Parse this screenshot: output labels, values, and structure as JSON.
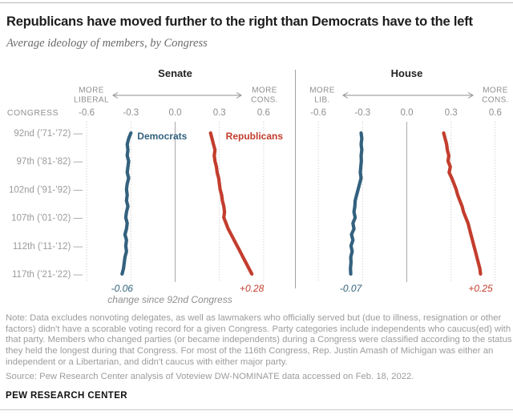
{
  "title": "Republicans have moved further to the right than Democrats have to the left",
  "subtitle": "Average ideology of members, by Congress",
  "note": "Note: Data excludes nonvoting delegates, as well as lawmakers who officially served but (due to illness, resignation or other factors) didn't have a scorable voting record for a given Congress. Party categories include independents who caucus(ed) with that party. Members who changed parties (or became independents) during a Congress were classified according to the status they held the longest during that Congress. For most of the 116th Congress, Rep. Justin Amash of Michigan was either an independent or a Libertarian, and didn't caucus with either major party.",
  "source": "Source: Pew Research Center analysis of Voteview DW-NOMINATE data accessed on Feb. 18, 2022.",
  "brand": "PEW RESEARCH CENTER",
  "colors": {
    "democrat": "#33617e",
    "republican": "#c33d2d",
    "axis_text": "#8f8f8f",
    "gridline": "#c2c2c2",
    "zero_line": "#a9a9a9",
    "divider": "#a3a3a3"
  },
  "chart_data": {
    "type": "line",
    "orientation": "vertical-time",
    "congress_axis": {
      "label": "CONGRESS",
      "first_congress": 92,
      "last_congress": 117,
      "rows": [
        {
          "congress": 92,
          "label": "92nd (’71-’72) —"
        },
        {
          "congress": 97,
          "label": "97th (’81-’82) —"
        },
        {
          "congress": 102,
          "label": "102nd (’91-’92) —"
        },
        {
          "congress": 107,
          "label": "107th (’01-’02) —"
        },
        {
          "congress": 112,
          "label": "112th (’11-’12) —"
        },
        {
          "congress": 117,
          "label": "117th (’21-’22) —"
        }
      ]
    },
    "value_axis": {
      "tick_labels": [
        "-0.6",
        "-0.3",
        "0.0",
        "0.3",
        "0.6"
      ],
      "tick_values": [
        -0.6,
        -0.3,
        0,
        0.3,
        0.6
      ],
      "range": [
        -0.72,
        0.72
      ]
    },
    "change_note": "change since 92nd Congress",
    "panels": [
      {
        "chamber": "Senate",
        "left_axis_label": [
          "MORE",
          "LIBERAL"
        ],
        "right_axis_label": [
          "MORE",
          "CONS."
        ],
        "show_series_names": true,
        "show_change_note": true,
        "series": [
          {
            "name": "Democrats",
            "color": "#33617e",
            "change_label": "-0.06",
            "start_value": -0.3,
            "end_value": -0.36,
            "values": [
              -0.3,
              -0.315,
              -0.325,
              -0.32,
              -0.325,
              -0.315,
              -0.32,
              -0.325,
              -0.315,
              -0.325,
              -0.33,
              -0.325,
              -0.33,
              -0.32,
              -0.33,
              -0.335,
              -0.325,
              -0.33,
              -0.34,
              -0.33,
              -0.335,
              -0.33,
              -0.34,
              -0.345,
              -0.35,
              -0.36
            ]
          },
          {
            "name": "Republicans",
            "color": "#c33d2d",
            "change_label": "+0.28",
            "start_value": 0.24,
            "end_value": 0.52,
            "values": [
              0.24,
              0.25,
              0.26,
              0.27,
              0.265,
              0.27,
              0.28,
              0.285,
              0.295,
              0.3,
              0.305,
              0.315,
              0.32,
              0.33,
              0.335,
              0.33,
              0.345,
              0.36,
              0.38,
              0.4,
              0.42,
              0.44,
              0.46,
              0.48,
              0.5,
              0.52
            ]
          }
        ]
      },
      {
        "chamber": "House",
        "left_axis_label": [
          "MORE",
          "LIB."
        ],
        "right_axis_label": [
          "MORE",
          "CONS."
        ],
        "show_series_names": false,
        "show_change_note": false,
        "series": [
          {
            "name": "Democrats",
            "color": "#33617e",
            "change_label": "-0.07",
            "start_value": -0.31,
            "end_value": -0.38,
            "values": [
              -0.31,
              -0.305,
              -0.31,
              -0.305,
              -0.31,
              -0.308,
              -0.312,
              -0.315,
              -0.31,
              -0.32,
              -0.33,
              -0.34,
              -0.35,
              -0.352,
              -0.358,
              -0.35,
              -0.365,
              -0.358,
              -0.375,
              -0.365,
              -0.378,
              -0.37,
              -0.38,
              -0.378,
              -0.382,
              -0.38
            ]
          },
          {
            "name": "Republicans",
            "color": "#c33d2d",
            "change_label": "+0.25",
            "start_value": 0.25,
            "end_value": 0.5,
            "values": [
              0.25,
              0.26,
              0.27,
              0.275,
              0.285,
              0.28,
              0.295,
              0.287,
              0.305,
              0.32,
              0.335,
              0.345,
              0.36,
              0.375,
              0.385,
              0.4,
              0.415,
              0.425,
              0.435,
              0.445,
              0.455,
              0.465,
              0.475,
              0.485,
              0.495,
              0.5
            ]
          }
        ]
      }
    ]
  }
}
